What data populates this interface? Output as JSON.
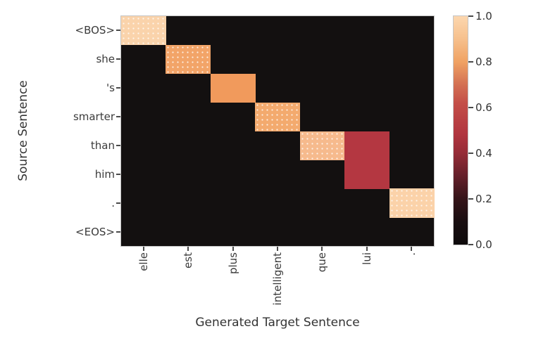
{
  "figure": {
    "background": "#ffffff"
  },
  "chart_data": {
    "type": "heatmap",
    "title": "",
    "xlabel": "Generated Target Sentence",
    "ylabel": "Source Sentence",
    "x_labels": [
      "elle",
      "est",
      "plus",
      "intelligent",
      "que",
      "lui",
      "."
    ],
    "y_labels": [
      "<BOS>",
      "she",
      "'s",
      "smarter",
      "than",
      "him",
      ".",
      "<EOS>"
    ],
    "matrix": [
      [
        0.97,
        0,
        0,
        0,
        0,
        0,
        0
      ],
      [
        0,
        0.78,
        0,
        0,
        0,
        0,
        0
      ],
      [
        0,
        0,
        0.76,
        0,
        0,
        0,
        0
      ],
      [
        0,
        0,
        0,
        0.8,
        0,
        0,
        0
      ],
      [
        0,
        0,
        0,
        0,
        0.87,
        0.5,
        0
      ],
      [
        0,
        0,
        0,
        0,
        0,
        0.5,
        0
      ],
      [
        0,
        0,
        0,
        0,
        0,
        0,
        0.96
      ],
      [
        0,
        0,
        0,
        0,
        0,
        0,
        0
      ]
    ],
    "cells": [
      {
        "row": 0,
        "col": 0,
        "value": 0.97,
        "color": "#fad3ab",
        "speckled": true
      },
      {
        "row": 1,
        "col": 1,
        "value": 0.78,
        "color": "#f2a468",
        "speckled": true
      },
      {
        "row": 2,
        "col": 2,
        "value": 0.76,
        "color": "#f19a5c",
        "speckled": false
      },
      {
        "row": 3,
        "col": 3,
        "value": 0.8,
        "color": "#f3aa6e",
        "speckled": true
      },
      {
        "row": 4,
        "col": 4,
        "value": 0.87,
        "color": "#f6ba8d",
        "speckled": true
      },
      {
        "row": 4,
        "col": 5,
        "value": 0.5,
        "color": "#b43741",
        "speckled": false
      },
      {
        "row": 5,
        "col": 5,
        "value": 0.5,
        "color": "#b43741",
        "speckled": false
      },
      {
        "row": 6,
        "col": 6,
        "value": 0.96,
        "color": "#fbd2a9",
        "speckled": true
      }
    ],
    "zero_color": "#131010",
    "grid": false,
    "value_range": [
      0.0,
      1.0
    ],
    "colorbar": {
      "position": "right",
      "ticks": [
        "0.0",
        "0.2",
        "0.4",
        "0.6",
        "0.8",
        "1.0"
      ],
      "min": 0.0,
      "max": 1.0,
      "gradient_stops": [
        {
          "v": 0.0,
          "color": "#0d0a0b"
        },
        {
          "v": 0.1,
          "color": "#190e10"
        },
        {
          "v": 0.2,
          "color": "#351419"
        },
        {
          "v": 0.3,
          "color": "#64202a"
        },
        {
          "v": 0.4,
          "color": "#952c37"
        },
        {
          "v": 0.48,
          "color": "#b0353f"
        },
        {
          "v": 0.56,
          "color": "#bb4344"
        },
        {
          "v": 0.62,
          "color": "#c44f48"
        },
        {
          "v": 0.7,
          "color": "#d37053"
        },
        {
          "v": 0.8,
          "color": "#f0a263"
        },
        {
          "v": 0.9,
          "color": "#f6c08d"
        },
        {
          "v": 1.0,
          "color": "#fcd7af"
        }
      ]
    }
  }
}
